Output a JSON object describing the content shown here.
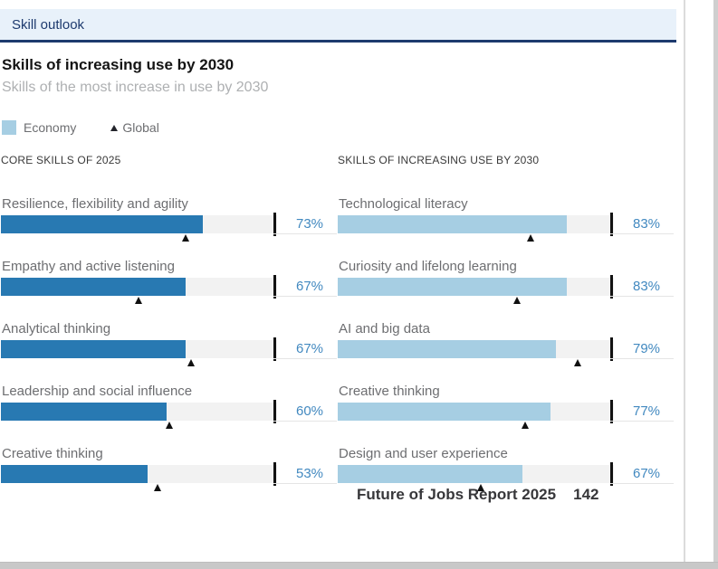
{
  "tab": {
    "label": "Skill outlook"
  },
  "header": {
    "title": "Skills of increasing use by 2030",
    "subtitle": "Skills of the most increase in use by 2030"
  },
  "legend": {
    "economy_label": "Economy",
    "global_label": "Global",
    "economy_color": "#a6cee3",
    "global_marker_color": "#101010"
  },
  "colors": {
    "accent_navy": "#1d3a6e",
    "band_bg": "#e8f1fa",
    "economy_dark": "#2879b2",
    "economy_light": "#a6cee3",
    "value_blue": "#4289c0",
    "track_gray": "#f2f2f2"
  },
  "footer": {
    "report_title": "Future of Jobs Report 2025",
    "page_number": "142"
  },
  "chart_data": {
    "type": "bar",
    "orientation": "horizontal",
    "unit": "%",
    "xlim": [
      0,
      100
    ],
    "axis_end_tick": 100,
    "grid": false,
    "legend_entries": [
      "Economy",
      "Global"
    ],
    "legend_position": "top-left",
    "columns": [
      {
        "header": "CORE SKILLS OF 2025",
        "bar_color": "#2879b2",
        "rows": [
          {
            "label": "Resilience, flexibility and agility",
            "economy": 73,
            "economy_label": "73%",
            "global": 67
          },
          {
            "label": "Empathy and active listening",
            "economy": 67,
            "economy_label": "67%",
            "global": 50
          },
          {
            "label": "Analytical thinking",
            "economy": 67,
            "economy_label": "67%",
            "global": 69
          },
          {
            "label": "Leadership and social influence",
            "economy": 60,
            "economy_label": "60%",
            "global": 61
          },
          {
            "label": "Creative thinking",
            "economy": 53,
            "economy_label": "53%",
            "global": 57
          }
        ]
      },
      {
        "header": "SKILLS OF INCREASING USE BY 2030",
        "bar_color": "#a6cee3",
        "rows": [
          {
            "label": "Technological literacy",
            "economy": 83,
            "economy_label": "83%",
            "global": 70
          },
          {
            "label": "Curiosity and lifelong learning",
            "economy": 83,
            "economy_label": "83%",
            "global": 65
          },
          {
            "label": "AI and big data",
            "economy": 79,
            "economy_label": "79%",
            "global": 87
          },
          {
            "label": "Creative thinking",
            "economy": 77,
            "economy_label": "77%",
            "global": 68
          },
          {
            "label": "Design and user experience",
            "economy": 67,
            "economy_label": "67%",
            "global": 52
          }
        ]
      }
    ]
  }
}
